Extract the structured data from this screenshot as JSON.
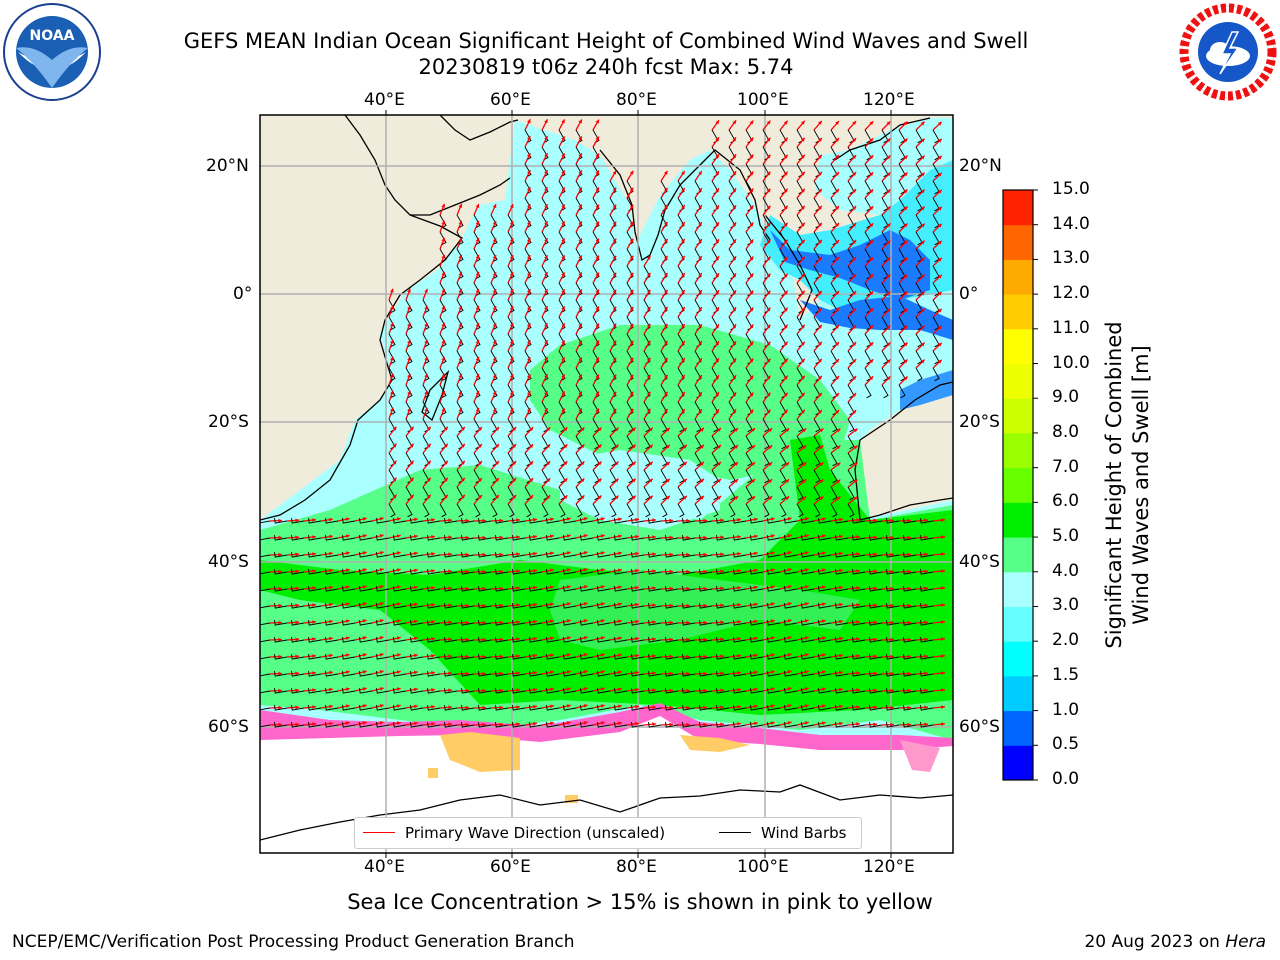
{
  "header": {
    "title_line1": "GEFS MEAN Indian Ocean Significant Height of Combined Wind Waves and Swell",
    "title_line2": "20230819 t06z 240h fcst   Max: 5.74"
  },
  "logos": {
    "left": "noaa-logo",
    "left_text": "NOAA",
    "right": "national-weather-service-logo"
  },
  "map": {
    "lon_ticks_top": [
      "40°E",
      "60°E",
      "80°E",
      "100°E",
      "120°E"
    ],
    "lon_ticks_bottom": [
      "40°E",
      "60°E",
      "80°E",
      "100°E",
      "120°E"
    ],
    "lat_ticks_left": [
      "20°N",
      "0°",
      "20°S",
      "40°S",
      "60°S"
    ],
    "lat_ticks_right": [
      "20°N",
      "0°",
      "20°S",
      "40°S",
      "60°S"
    ],
    "legend": {
      "wave_direction": "Primary Wave Direction (unscaled)",
      "wind_barbs": "Wind Barbs"
    },
    "colors": {
      "land": "#efecdc",
      "wave_arrow": "#ff0000",
      "wind_barb": "#000000",
      "sea_ice": "#ff66cc"
    }
  },
  "colorbar": {
    "label_line1": "Significant Height of Combined",
    "label_line2": "Wind Waves and Swell [m]",
    "ticks": [
      "0.0",
      "0.5",
      "1.0",
      "1.5",
      "2.0",
      "3.0",
      "4.0",
      "5.0",
      "6.0",
      "7.0",
      "8.0",
      "9.0",
      "10.0",
      "11.0",
      "12.0",
      "13.0",
      "14.0",
      "15.0"
    ],
    "colors": [
      "#0000ff",
      "#0066ff",
      "#00ccff",
      "#00ffff",
      "#66ffff",
      "#aaffff",
      "#55ff88",
      "#00ee00",
      "#66ff00",
      "#99ff00",
      "#ccff00",
      "#eeff00",
      "#ffff00",
      "#ffcc00",
      "#ffaa00",
      "#ff6600",
      "#ff2200",
      "#ff0000"
    ]
  },
  "footer": {
    "caption": "Sea Ice Concentration > 15% is shown in pink to yellow",
    "credit_left": "NCEP/EMC/Verification Post Processing Product Generation Branch",
    "credit_right_prefix": "20 Aug 2023 on ",
    "credit_right_host": "Hera"
  }
}
